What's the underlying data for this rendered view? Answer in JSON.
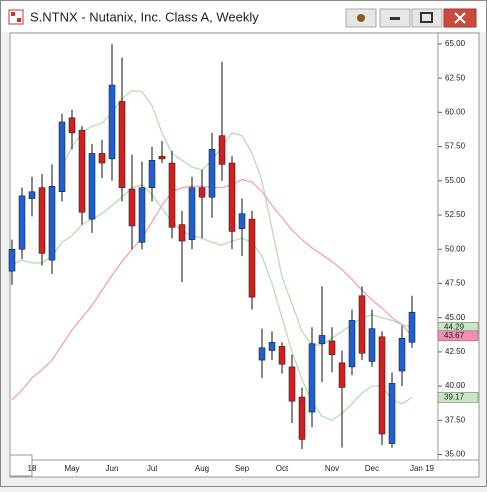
{
  "chart_data": {
    "type": "candlestick",
    "title": "S.NTNX - Nutanix, Inc. Class A, Weekly",
    "categories": [
      null,
      null,
      "18",
      null,
      null,
      null,
      "May",
      null,
      null,
      null,
      "Jun",
      null,
      null,
      null,
      "Jul",
      null,
      null,
      null,
      null,
      "Aug",
      null,
      null,
      null,
      "Sep",
      null,
      null,
      null,
      "Oct",
      null,
      null,
      null,
      null,
      "Nov",
      null,
      null,
      null,
      "Dec",
      null,
      null,
      null,
      null,
      "Jan 19"
    ],
    "open": [
      48.4,
      50.0,
      53.7,
      54.5,
      49.2,
      54.2,
      59.6,
      58.7,
      52.2,
      57.0,
      56.6,
      60.8,
      54.4,
      50.5,
      54.5,
      56.8,
      56.3,
      51.8,
      50.7,
      54.5,
      53.8,
      58.3,
      56.3,
      51.5,
      52.2,
      41.9,
      42.6,
      42.9,
      41.4,
      39.2,
      38.1,
      43.1,
      43.3,
      41.7,
      41.4,
      46.6,
      41.8,
      43.6,
      35.8,
      41.1,
      43.2,
      null
    ],
    "high": [
      50.7,
      54.5,
      55.3,
      55.5,
      56.2,
      59.9,
      60.2,
      59.0,
      57.7,
      58.0,
      65.0,
      64.0,
      56.9,
      56.4,
      57.5,
      57.9,
      57.2,
      52.8,
      55.3,
      55.8,
      58.5,
      63.7,
      56.8,
      53.7,
      52.8,
      44.2,
      44.0,
      43.2,
      42.3,
      39.9,
      44.3,
      47.3,
      44.3,
      42.6,
      45.6,
      47.3,
      45.6,
      44.0,
      41.0,
      44.4,
      46.6,
      null
    ],
    "low": [
      47.4,
      49.3,
      52.4,
      48.8,
      48.2,
      53.5,
      57.3,
      51.8,
      51.2,
      55.2,
      55.0,
      53.5,
      50.0,
      50.0,
      53.5,
      56.3,
      50.8,
      47.6,
      50.0,
      50.8,
      52.3,
      55.0,
      50.0,
      49.5,
      45.6,
      40.6,
      41.9,
      40.9,
      37.3,
      35.4,
      37.0,
      40.3,
      41.0,
      35.5,
      40.8,
      41.9,
      41.4,
      35.7,
      35.5,
      40.0,
      42.8,
      null
    ],
    "close": [
      50.0,
      53.9,
      54.2,
      49.7,
      54.6,
      59.3,
      58.5,
      52.7,
      57.0,
      56.3,
      62.0,
      54.5,
      51.7,
      54.5,
      56.5,
      56.6,
      51.6,
      50.6,
      54.5,
      53.8,
      57.3,
      56.2,
      51.3,
      52.6,
      46.5,
      42.8,
      43.2,
      41.6,
      38.9,
      36.1,
      43.1,
      43.7,
      42.3,
      39.9,
      44.8,
      42.4,
      44.2,
      36.5,
      40.2,
      43.5,
      45.4,
      null
    ],
    "up_color": "#1f5fd0",
    "down_color": "#d31f1f",
    "lines": [
      {
        "color": "#b9dcb4",
        "values": [
          null,
          null,
          null,
          null,
          null,
          56.0,
          57.5,
          58.5,
          59.0,
          59.2,
          60.0,
          61.0,
          61.6,
          61.5,
          60.5,
          58.5,
          57.0,
          56.5,
          56.0,
          55.8,
          56.5,
          57.5,
          58.5,
          58.3,
          57.0,
          55.0,
          51.5,
          48.0,
          46.0,
          44.0,
          43.0,
          43.0,
          43.5,
          44.0,
          44.5,
          45.0,
          45.2,
          45.0,
          44.8,
          44.5,
          44.29,
          null
        ],
        "value_label": 44.29,
        "label_color": "#c8e6c4"
      },
      {
        "color": "#f4a0bc",
        "values": [
          39.0,
          39.7,
          40.6,
          41.2,
          41.9,
          43.0,
          44.1,
          45.0,
          45.9,
          47.0,
          48.1,
          49.1,
          50.0,
          50.8,
          52.0,
          53.2,
          54.2,
          54.5,
          54.6,
          54.6,
          54.5,
          54.5,
          54.7,
          55.1,
          54.9,
          54.2,
          53.2,
          52.3,
          51.4,
          50.7,
          50.1,
          49.6,
          49.1,
          48.5,
          47.8,
          47.0,
          46.3,
          45.7,
          45.0,
          44.5,
          43.67,
          null
        ],
        "value_label": 43.67,
        "label_color": "#f48cb4"
      },
      {
        "color": "#b9dcb4",
        "values": [
          48.9,
          49.2,
          49.0,
          49.0,
          49.5,
          50.5,
          51.0,
          51.8,
          52.2,
          52.6,
          53.2,
          53.8,
          54.5,
          54.7,
          54.0,
          53.0,
          52.0,
          51.3,
          51.0,
          50.8,
          50.5,
          50.3,
          50.6,
          50.8,
          50.5,
          49.5,
          47.5,
          45.0,
          42.5,
          40.5,
          38.8,
          37.8,
          37.5,
          38.0,
          38.7,
          39.5,
          40.0,
          40.0,
          39.0,
          38.7,
          39.17,
          null
        ],
        "value_label": 39.17,
        "label_color": "#c8e6c4"
      }
    ],
    "ylim": [
      34.6,
      65.8
    ],
    "yticks": [
      {
        "value": 35,
        "label": "35.00"
      },
      {
        "value": 37.5,
        "label": "37.50"
      },
      {
        "value": 40,
        "label": "40.00"
      },
      {
        "value": 42.5,
        "label": "42.50"
      },
      {
        "value": 45,
        "label": "45.00"
      },
      {
        "value": 47.5,
        "label": "47.50"
      },
      {
        "value": 50,
        "label": "50.00"
      },
      {
        "value": 52.5,
        "label": "52.50"
      },
      {
        "value": 55,
        "label": "55.00"
      },
      {
        "value": 57.5,
        "label": "57.50"
      },
      {
        "value": 60,
        "label": "60.00"
      },
      {
        "value": 62.5,
        "label": "62.50"
      },
      {
        "value": 65,
        "label": "65.00"
      }
    ]
  }
}
